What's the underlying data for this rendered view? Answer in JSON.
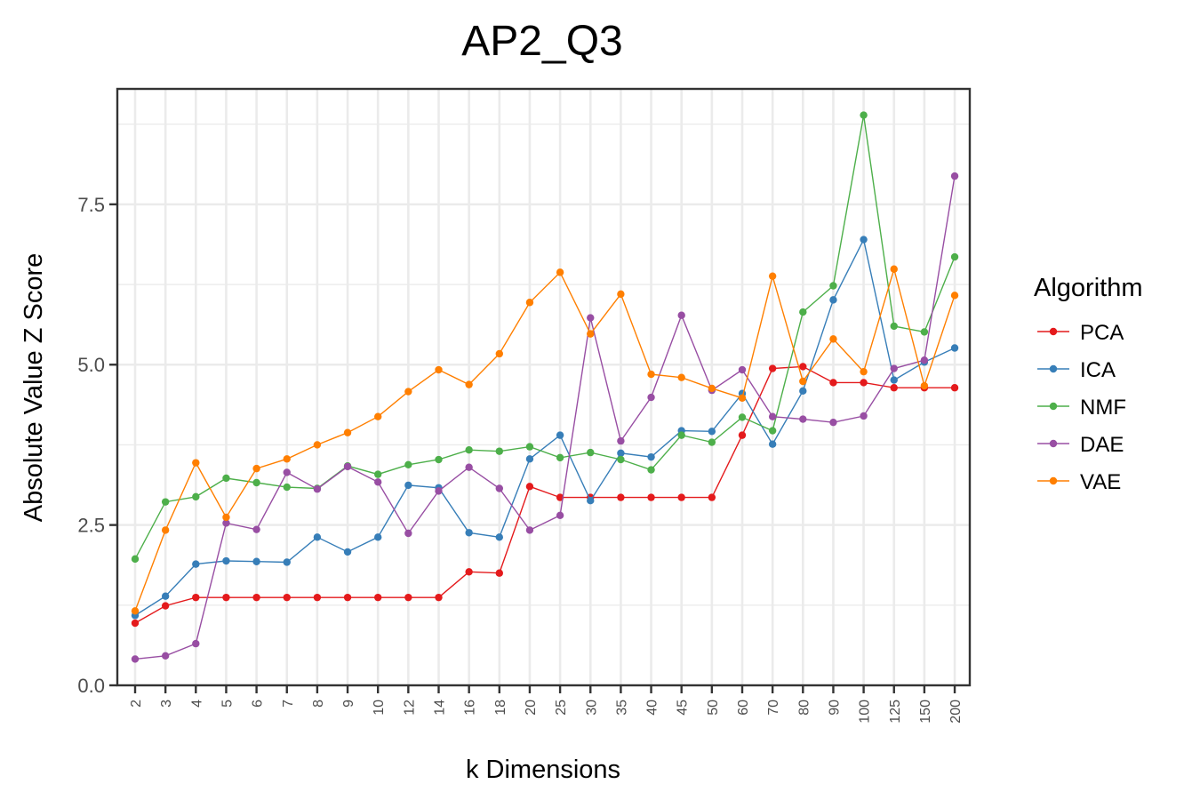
{
  "chart_data": {
    "type": "line",
    "title": "AP2_Q3",
    "xlabel": "k Dimensions",
    "ylabel": "Absolute Value Z Score",
    "categories": [
      "2",
      "3",
      "4",
      "5",
      "6",
      "7",
      "8",
      "9",
      "10",
      "12",
      "14",
      "16",
      "18",
      "20",
      "25",
      "30",
      "35",
      "40",
      "45",
      "50",
      "60",
      "70",
      "80",
      "90",
      "100",
      "125",
      "150",
      "200"
    ],
    "yticks": [
      "0.0",
      "2.5",
      "5.0",
      "7.5"
    ],
    "ylim": [
      0,
      9.3
    ],
    "grid": true,
    "legend": {
      "title": "Algorithm",
      "position": "right"
    },
    "series": [
      {
        "name": "PCA",
        "color": "#e41a1c",
        "values": [
          0.97,
          1.24,
          1.37,
          1.37,
          1.37,
          1.37,
          1.37,
          1.37,
          1.37,
          1.37,
          1.37,
          1.77,
          1.75,
          3.1,
          2.93,
          2.93,
          2.93,
          2.93,
          2.93,
          2.93,
          3.9,
          4.94,
          4.97,
          4.72,
          4.72,
          4.64,
          4.64,
          4.64
        ]
      },
      {
        "name": "ICA",
        "color": "#377eb8",
        "values": [
          1.09,
          1.39,
          1.89,
          1.94,
          1.93,
          1.92,
          2.31,
          2.08,
          2.31,
          3.12,
          3.08,
          2.38,
          2.31,
          3.53,
          3.9,
          2.88,
          3.62,
          3.56,
          3.97,
          3.96,
          4.55,
          3.76,
          4.59,
          6.01,
          6.95,
          4.76,
          5.04,
          5.26
        ]
      },
      {
        "name": "NMF",
        "color": "#4daf4a",
        "values": [
          1.97,
          2.86,
          2.94,
          3.23,
          3.16,
          3.09,
          3.07,
          3.42,
          3.29,
          3.44,
          3.52,
          3.67,
          3.65,
          3.72,
          3.55,
          3.63,
          3.52,
          3.36,
          3.9,
          3.79,
          4.18,
          3.97,
          5.82,
          6.23,
          8.89,
          5.6,
          5.51,
          6.68
        ]
      },
      {
        "name": "DAE",
        "color": "#984ea3",
        "values": [
          0.41,
          0.46,
          0.65,
          2.53,
          2.43,
          3.32,
          3.06,
          3.41,
          3.17,
          2.37,
          3.03,
          3.4,
          3.07,
          2.42,
          2.65,
          5.73,
          3.81,
          4.49,
          5.77,
          4.6,
          4.92,
          4.19,
          4.15,
          4.1,
          4.2,
          4.94,
          5.07,
          7.94
        ]
      },
      {
        "name": "VAE",
        "color": "#ff7f00",
        "values": [
          1.16,
          2.42,
          3.47,
          2.62,
          3.38,
          3.53,
          3.75,
          3.94,
          4.19,
          4.58,
          4.92,
          4.69,
          5.17,
          5.97,
          6.44,
          5.48,
          6.1,
          4.85,
          4.8,
          4.63,
          4.48,
          6.38,
          4.74,
          5.4,
          4.89,
          6.49,
          4.67,
          6.08
        ]
      }
    ]
  }
}
